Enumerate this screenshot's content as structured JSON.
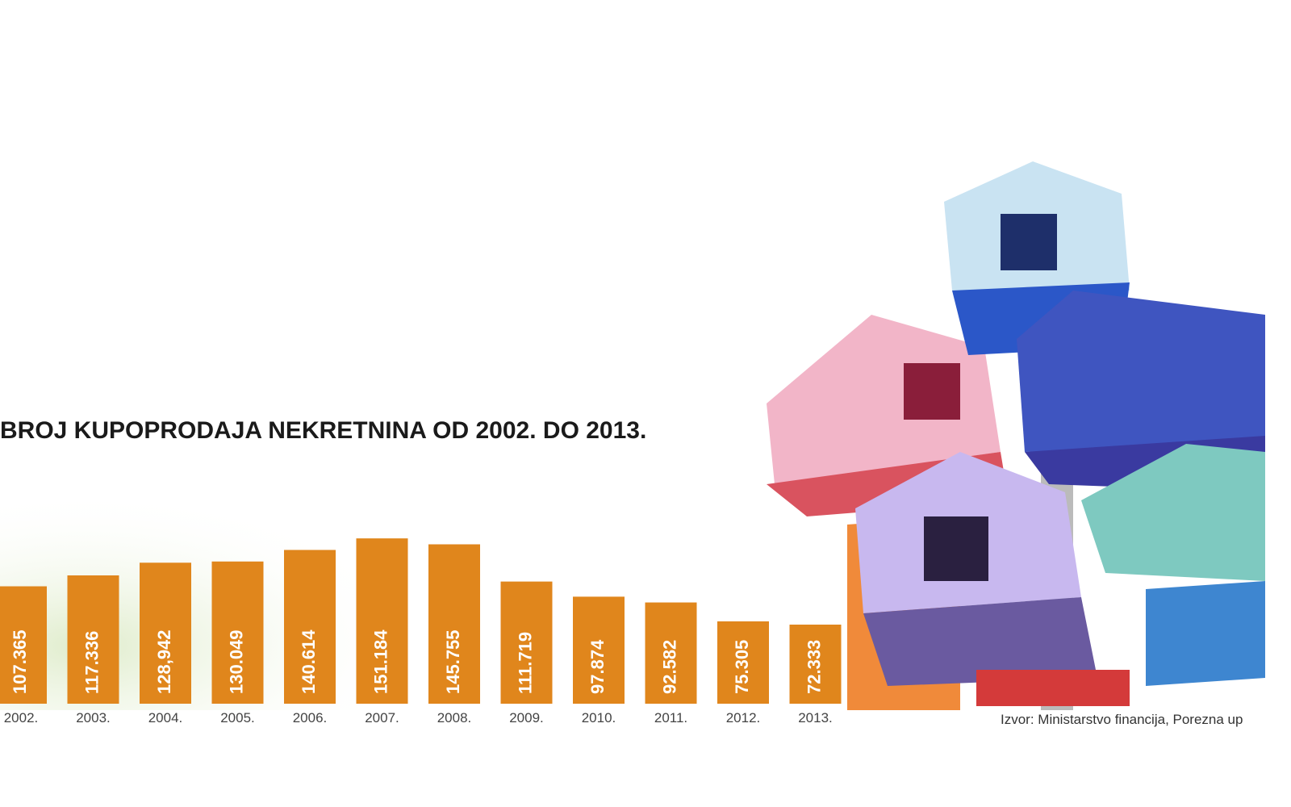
{
  "chart_data": {
    "type": "bar",
    "title": "BROJ KUPOPRODAJA NEKRETNINA OD 2002. DO 2013.",
    "categories": [
      "2002.",
      "2003.",
      "2004.",
      "2005.",
      "2006.",
      "2007.",
      "2008.",
      "2009.",
      "2010.",
      "2011.",
      "2012.",
      "2013."
    ],
    "values": [
      107365,
      117336,
      128942,
      130049,
      140614,
      151184,
      145755,
      111719,
      97874,
      92582,
      75305,
      72333
    ],
    "value_labels": [
      "107.365",
      "117.336",
      "128,942",
      "130.049",
      "140.614",
      "151.184",
      "145.755",
      "111.719",
      "97.874",
      "92.582",
      "75.305",
      "72.333"
    ],
    "color": "#e0861c",
    "source": "Izvor: Ministarstvo financija, Porezna up"
  }
}
